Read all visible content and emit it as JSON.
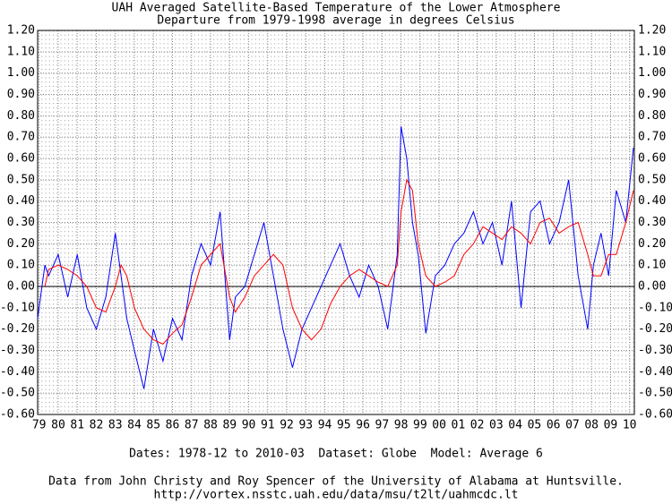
{
  "chart_data": {
    "type": "line",
    "title": "UAH Averaged Satellite-Based Temperature of the Lower Atmosphere",
    "subtitle": "Departure from 1979-1998 average in degrees Celsius",
    "notes": [
      "Dates: 1978-12 to 2010-03  Dataset: Globe  Model: Average 6",
      "Data from John Christy and Roy Spencer of the University of Alabama at Huntsville.",
      "http://vortex.nsstc.uah.edu/data/msu/t2lt/uahmcdc.lt"
    ],
    "x": [
      1978.92,
      1979.3,
      1979.5,
      1980.0,
      1980.5,
      1981.0,
      1981.5,
      1982.0,
      1982.5,
      1983.0,
      1983.3,
      1983.6,
      1984.0,
      1984.5,
      1985.0,
      1985.5,
      1986.0,
      1986.5,
      1987.0,
      1987.5,
      1988.0,
      1988.5,
      1989.0,
      1989.3,
      1989.8,
      1990.3,
      1990.8,
      1991.3,
      1991.8,
      1992.3,
      1992.8,
      1993.3,
      1993.8,
      1994.3,
      1994.8,
      1995.3,
      1995.8,
      1996.3,
      1996.8,
      1997.3,
      1997.8,
      1998.0,
      1998.3,
      1998.6,
      1998.9,
      1999.3,
      1999.8,
      2000.3,
      2000.8,
      2001.3,
      2001.8,
      2002.3,
      2002.8,
      2003.3,
      2003.8,
      2004.3,
      2004.8,
      2005.3,
      2005.8,
      2006.3,
      2006.8,
      2007.3,
      2007.8,
      2008.1,
      2008.5,
      2008.9,
      2009.3,
      2009.8,
      2010.2
    ],
    "series": [
      {
        "color": "#0000ff",
        "values": [
          -0.15,
          0.1,
          0.05,
          0.15,
          -0.05,
          0.15,
          -0.1,
          -0.2,
          -0.05,
          0.25,
          0.05,
          -0.15,
          -0.3,
          -0.48,
          -0.2,
          -0.35,
          -0.15,
          -0.25,
          0.05,
          0.2,
          0.1,
          0.35,
          -0.25,
          -0.05,
          0.0,
          0.15,
          0.3,
          0.05,
          -0.2,
          -0.38,
          -0.2,
          -0.1,
          0.0,
          0.1,
          0.2,
          0.05,
          -0.05,
          0.1,
          0.0,
          -0.2,
          0.15,
          0.75,
          0.6,
          0.3,
          0.15,
          -0.22,
          0.05,
          0.1,
          0.2,
          0.25,
          0.35,
          0.2,
          0.3,
          0.1,
          0.4,
          -0.1,
          0.35,
          0.4,
          0.2,
          0.3,
          0.5,
          0.05,
          -0.2,
          0.1,
          0.25,
          0.05,
          0.45,
          0.3,
          0.65
        ]
      },
      {
        "color": "#ff0000",
        "values": [
          null,
          0.0,
          0.08,
          0.1,
          0.08,
          0.05,
          0.0,
          -0.1,
          -0.12,
          0.0,
          0.1,
          0.05,
          -0.1,
          -0.2,
          -0.25,
          -0.27,
          -0.22,
          -0.18,
          -0.05,
          0.1,
          0.15,
          0.2,
          -0.05,
          -0.12,
          -0.05,
          0.05,
          0.1,
          0.15,
          0.1,
          -0.1,
          -0.2,
          -0.25,
          -0.2,
          -0.08,
          0.0,
          0.05,
          0.08,
          0.05,
          0.02,
          0.0,
          0.1,
          0.35,
          0.5,
          0.45,
          0.2,
          0.05,
          0.0,
          0.02,
          0.05,
          0.15,
          0.2,
          0.28,
          0.25,
          0.22,
          0.28,
          0.25,
          0.2,
          0.3,
          0.32,
          0.25,
          0.28,
          0.3,
          0.15,
          0.05,
          0.05,
          0.15,
          0.15,
          0.3,
          0.45
        ]
      }
    ],
    "xlim": [
      1978.92,
      2010.25
    ],
    "xticks": [
      {
        "value": 1979,
        "label": "79"
      },
      {
        "value": 1980,
        "label": "80"
      },
      {
        "value": 1981,
        "label": "81"
      },
      {
        "value": 1982,
        "label": "82"
      },
      {
        "value": 1983,
        "label": "83"
      },
      {
        "value": 1984,
        "label": "84"
      },
      {
        "value": 1985,
        "label": "85"
      },
      {
        "value": 1986,
        "label": "86"
      },
      {
        "value": 1987,
        "label": "87"
      },
      {
        "value": 1988,
        "label": "88"
      },
      {
        "value": 1989,
        "label": "89"
      },
      {
        "value": 1990,
        "label": "90"
      },
      {
        "value": 1991,
        "label": "91"
      },
      {
        "value": 1992,
        "label": "92"
      },
      {
        "value": 1993,
        "label": "93"
      },
      {
        "value": 1994,
        "label": "94"
      },
      {
        "value": 1995,
        "label": "95"
      },
      {
        "value": 1996,
        "label": "96"
      },
      {
        "value": 1997,
        "label": "97"
      },
      {
        "value": 1998,
        "label": "98"
      },
      {
        "value": 1999,
        "label": "99"
      },
      {
        "value": 2000,
        "label": "00"
      },
      {
        "value": 2001,
        "label": "01"
      },
      {
        "value": 2002,
        "label": "02"
      },
      {
        "value": 2003,
        "label": "03"
      },
      {
        "value": 2004,
        "label": "04"
      },
      {
        "value": 2005,
        "label": "05"
      },
      {
        "value": 2006,
        "label": "06"
      },
      {
        "value": 2007,
        "label": "07"
      },
      {
        "value": 2008,
        "label": "08"
      },
      {
        "value": 2009,
        "label": "09"
      },
      {
        "value": 2010,
        "label": "10"
      }
    ],
    "ylim": [
      -0.6,
      1.2
    ],
    "yticks": [
      {
        "value": -0.6,
        "label": "-0.60"
      },
      {
        "value": -0.5,
        "label": "-0.50"
      },
      {
        "value": -0.4,
        "label": "-0.40"
      },
      {
        "value": -0.3,
        "label": "-0.30"
      },
      {
        "value": -0.2,
        "label": "-0.20"
      },
      {
        "value": -0.1,
        "label": "-0.10"
      },
      {
        "value": 0,
        "label": "0.00"
      },
      {
        "value": 0.1,
        "label": "0.10"
      },
      {
        "value": 0.2,
        "label": "0.20"
      },
      {
        "value": 0.3,
        "label": "0.30"
      },
      {
        "value": 0.4,
        "label": "0.40"
      },
      {
        "value": 0.5,
        "label": "0.50"
      },
      {
        "value": 0.6,
        "label": "0.60"
      },
      {
        "value": 0.7,
        "label": "0.70"
      },
      {
        "value": 0.8,
        "label": "0.80"
      },
      {
        "value": 0.9,
        "label": "0.90"
      },
      {
        "value": 1.0,
        "label": "1.00"
      },
      {
        "value": 1.1,
        "label": "1.10"
      },
      {
        "value": 1.2,
        "label": "1.20"
      }
    ],
    "grid": true
  }
}
